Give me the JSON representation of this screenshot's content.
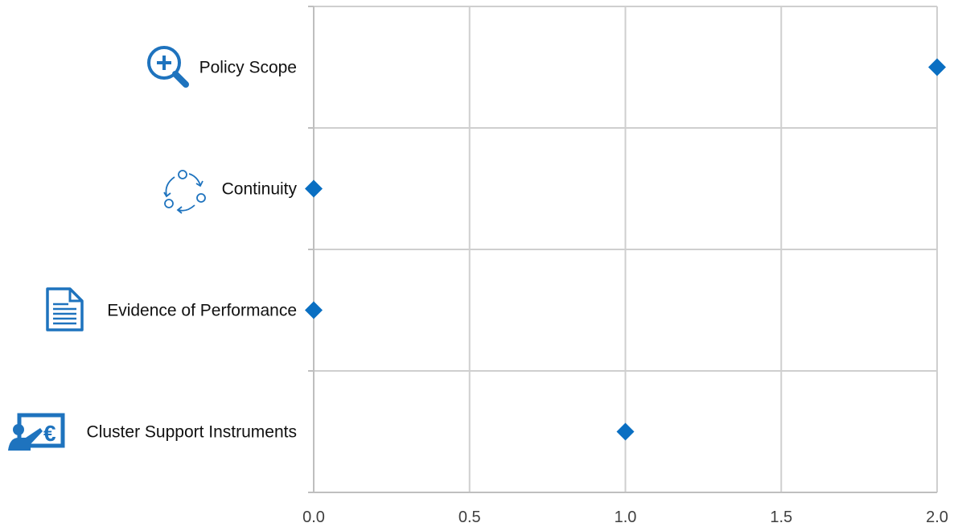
{
  "chart_data": {
    "type": "scatter",
    "orientation": "horizontal-categories",
    "categories": [
      "Policy Scope",
      "Continuity",
      "Evidence of Performance",
      "Cluster Support Instruments"
    ],
    "category_icons": [
      "magnifier-plus-icon",
      "cycle-arrows-icon",
      "document-icon",
      "presenter-euro-icon"
    ],
    "values": [
      2,
      0,
      0,
      1
    ],
    "xlim": [
      0,
      2
    ],
    "x_ticks": [
      "0.0",
      "0.5",
      "1.0",
      "1.5",
      "2.0"
    ],
    "marker": "diamond",
    "marker_color": "#0a6fc2",
    "icon_color": "#1e73be",
    "grid": true
  }
}
